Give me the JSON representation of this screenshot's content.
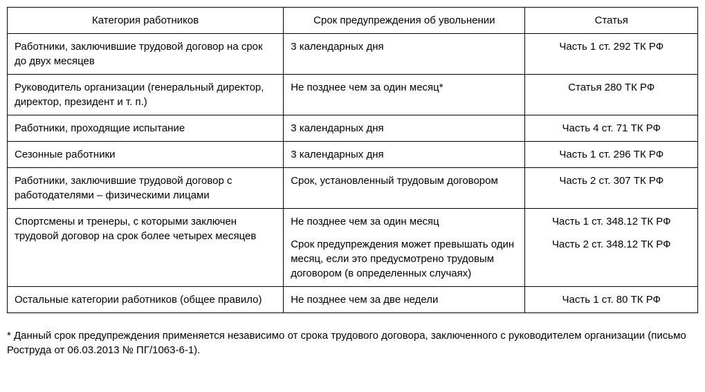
{
  "table": {
    "columns": [
      "Категория работников",
      "Срок предупреждения об увольнении",
      "Статья"
    ],
    "rows": [
      {
        "category": "Работники, заключившие трудовой договор на срок до двух месяцев",
        "term": "3 календарных дня",
        "article": "Часть 1 ст. 292 ТК РФ"
      },
      {
        "category": "Руководитель организации (генеральный директор, директор, президент и т. п.)",
        "term": "Не позднее чем за один месяц*",
        "article": "Статья 280 ТК РФ"
      },
      {
        "category": "Работники, проходящие испытание",
        "term": "3 календарных дня",
        "article": "Часть 4 ст. 71 ТК РФ"
      },
      {
        "category": "Сезонные работники",
        "term": "3 календарных дня",
        "article": "Часть 1 ст. 296 ТК РФ"
      },
      {
        "category": "Работники, заключившие трудовой договор с работодателями – физическими лицами",
        "term": "Срок, установленный трудовым договором",
        "article": "Часть 2 ст. 307 ТК РФ"
      },
      {
        "category": "Спортсмены и тренеры, с которыми заключен трудовой договор на срок более четырех месяцев",
        "term_multi": [
          "Не позднее чем за один месяц",
          "Срок предупреждения может превышать один месяц, если это предусмотрено трудовым договором (в определенных случаях)"
        ],
        "article_multi": [
          "Часть 1 ст. 348.12 ТК РФ",
          "Часть 2 ст. 348.12 ТК РФ"
        ]
      },
      {
        "category": "Остальные категории работников (общее правило)",
        "term": "Не позднее чем за две недели",
        "article": "Часть 1 ст. 80 ТК РФ"
      }
    ]
  },
  "footnote": "* Данный срок предупреждения применяется независимо от срока трудового договора, заключенного с руководителем организации (письмо Роструда от 06.03.2013 № ПГ/1063-6-1)."
}
